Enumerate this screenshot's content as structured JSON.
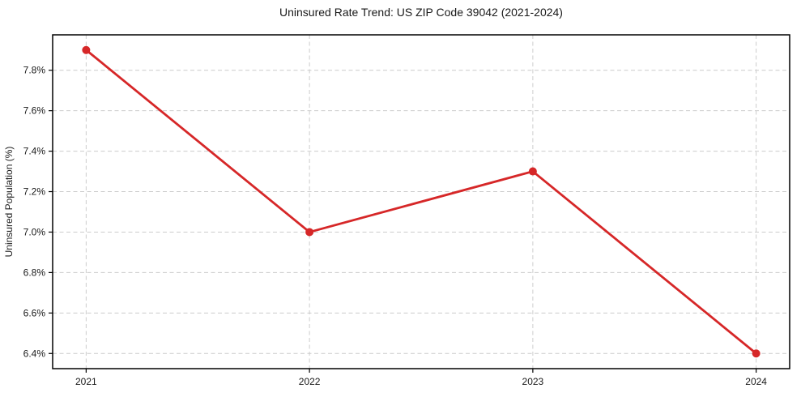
{
  "chart_data": {
    "type": "line",
    "title": "Uninsured Rate Trend: US ZIP Code 39042 (2021-2024)",
    "xlabel": "",
    "ylabel": "Uninsured Population (%)",
    "x": [
      2021,
      2022,
      2023,
      2024
    ],
    "x_tick_labels": [
      "2021",
      "2022",
      "2023",
      "2024"
    ],
    "series": [
      {
        "name": "Uninsured rate",
        "values": [
          7.9,
          7.0,
          7.3,
          6.4
        ]
      }
    ],
    "y_ticks": [
      6.4,
      6.6,
      6.8,
      7.0,
      7.2,
      7.4,
      7.6,
      7.8
    ],
    "y_tick_labels": [
      "6.4%",
      "6.6%",
      "6.8%",
      "7.0%",
      "7.2%",
      "7.4%",
      "7.6%",
      "7.8%"
    ],
    "xlim": [
      2020.85,
      2024.15
    ],
    "ylim": [
      6.325,
      7.975
    ],
    "grid": true,
    "legend": "none",
    "colors": {
      "line": "#d62728",
      "marker": "#d62728",
      "grid": "#cccccc",
      "spine": "#000000",
      "text": "#1a1a1a",
      "background": "#ffffff"
    }
  }
}
